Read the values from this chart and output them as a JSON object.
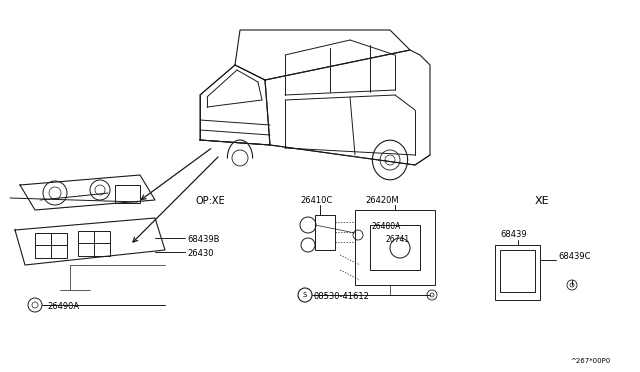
{
  "bg_color": "#ffffff",
  "line_color": "#1a1a1a",
  "fig_width": 6.4,
  "fig_height": 3.72,
  "dpi": 100,
  "labels": {
    "op_xe": "OP:XE",
    "xe": "XE",
    "26410c": "26410C",
    "26420m": "26420M",
    "26480a": "26480A",
    "26741": "26741",
    "68439b": "68439B",
    "26430": "26430",
    "26490a": "26490A",
    "08530": "08530-41612",
    "68439": "68439",
    "68439c": "68439C",
    "page_num": "^267*00P0"
  },
  "font_size_tiny": 5,
  "font_size_small": 6,
  "font_size_medium": 7,
  "font_size_large": 8
}
